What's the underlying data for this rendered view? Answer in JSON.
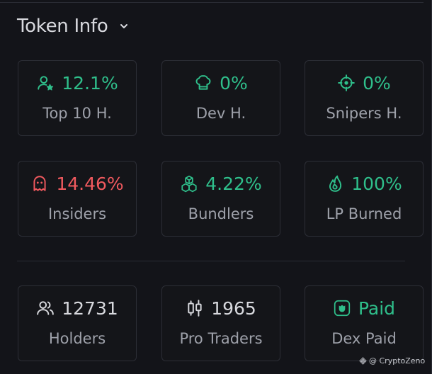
{
  "header": {
    "title": "Token Info"
  },
  "cards": [
    {
      "value": "12.1%",
      "label": "Top 10 H.",
      "icon": "user-star-icon",
      "color": "#2fbf8b"
    },
    {
      "value": "0%",
      "label": "Dev H.",
      "icon": "chef-hat-icon",
      "color": "#2fbf8b"
    },
    {
      "value": "0%",
      "label": "Snipers H.",
      "icon": "crosshair-icon",
      "color": "#2fbf8b"
    },
    {
      "value": "14.46%",
      "label": "Insiders",
      "icon": "ghost-icon",
      "color": "#f0595e"
    },
    {
      "value": "4.22%",
      "label": "Bundlers",
      "icon": "boxes-icon",
      "color": "#2fbf8b"
    },
    {
      "value": "100%",
      "label": "LP Burned",
      "icon": "flame-icon",
      "color": "#2fbf8b"
    },
    {
      "value": "12731",
      "label": "Holders",
      "icon": "users-icon",
      "color": "#d8d9de"
    },
    {
      "value": "1965",
      "label": "Pro Traders",
      "icon": "candlestick-icon",
      "color": "#d8d9de"
    },
    {
      "value": "Paid",
      "label": "Dex Paid",
      "icon": "dex-badge-icon",
      "color": "#2fbf8b"
    }
  ],
  "watermark": {
    "text": "@ CryptoZeno"
  }
}
